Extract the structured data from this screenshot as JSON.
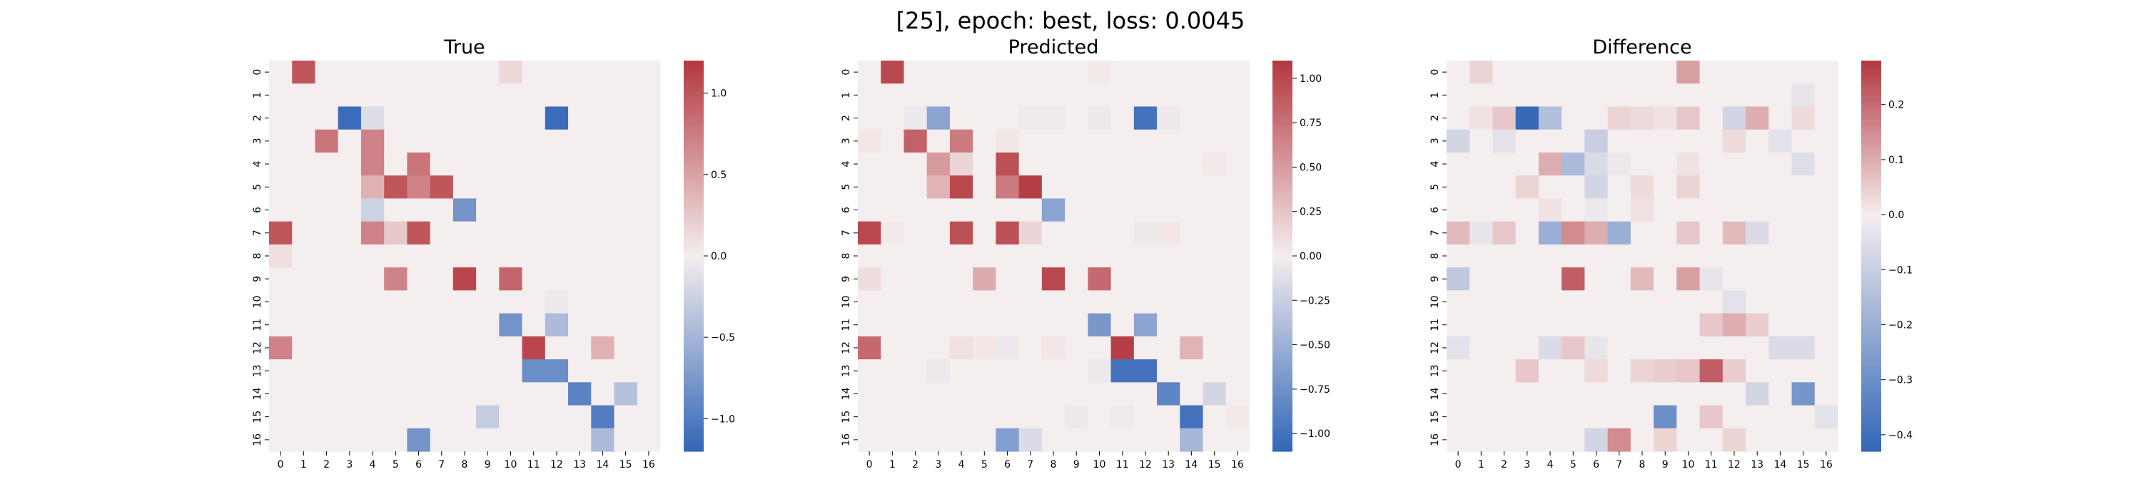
{
  "figure": {
    "suptitle": "[25], epoch: best, loss: 0.0045",
    "colormap": {
      "neg": "#3266b7",
      "mid": "#f5eeee",
      "pos": "#b3373f"
    }
  },
  "chart_data": [
    {
      "type": "heatmap",
      "title": "True",
      "x_ticks": [
        "0",
        "1",
        "2",
        "3",
        "4",
        "5",
        "6",
        "7",
        "8",
        "9",
        "10",
        "11",
        "12",
        "13",
        "14",
        "15",
        "16"
      ],
      "y_ticks": [
        "0",
        "1",
        "2",
        "3",
        "4",
        "5",
        "6",
        "7",
        "8",
        "9",
        "10",
        "11",
        "12",
        "13",
        "14",
        "15",
        "16"
      ],
      "vmin": -1.2,
      "vmax": 1.2,
      "colorbar_ticks": [
        -1.0,
        -0.5,
        0.0,
        0.5,
        1.0
      ],
      "colorbar_labels": [
        "−1.0",
        "−0.5",
        "0.0",
        "0.5",
        "1.0"
      ],
      "z": [
        [
          0,
          1.0,
          0,
          0,
          0,
          0,
          0,
          0,
          0,
          0,
          0.15,
          0,
          0,
          0,
          0,
          0,
          0
        ],
        [
          0,
          0,
          0,
          0,
          0,
          0,
          0,
          0,
          0,
          0,
          0,
          0,
          0,
          0,
          0,
          0,
          0
        ],
        [
          0,
          0,
          0,
          -1.15,
          -0.15,
          0,
          0,
          0,
          0,
          0,
          0,
          0,
          -1.15,
          0,
          0,
          0,
          0
        ],
        [
          0,
          0,
          0.8,
          0,
          0.7,
          0,
          0,
          0,
          0,
          0,
          0,
          0,
          0,
          0,
          0,
          0,
          0
        ],
        [
          0,
          0,
          0,
          0,
          0.7,
          0,
          0.8,
          0,
          0,
          0,
          0,
          0,
          0,
          0,
          0,
          0,
          0
        ],
        [
          0,
          0,
          0,
          0,
          0.4,
          1.0,
          0.7,
          1.0,
          0,
          0,
          0,
          0,
          0,
          0,
          0,
          0,
          0
        ],
        [
          0,
          0,
          0,
          0,
          -0.25,
          0,
          0,
          0,
          -0.8,
          0,
          0,
          0,
          0,
          0,
          0,
          0,
          0
        ],
        [
          1.0,
          0,
          0,
          0,
          0.7,
          0.25,
          1.0,
          0,
          0,
          0,
          0,
          0,
          0,
          0,
          0,
          0,
          0
        ],
        [
          0.1,
          0,
          0,
          0,
          0,
          0,
          0,
          0,
          0,
          0,
          0,
          0,
          0,
          0,
          0,
          0,
          0
        ],
        [
          0,
          0,
          0,
          0,
          0,
          0.7,
          0,
          0,
          1.1,
          0,
          0.9,
          0,
          0,
          0,
          0,
          0,
          0
        ],
        [
          0,
          0,
          0,
          0,
          0,
          0,
          0,
          0,
          0,
          0,
          0,
          0,
          -0.05,
          0,
          0,
          0,
          0
        ],
        [
          0,
          0,
          0,
          0,
          0,
          0,
          0,
          0,
          0,
          0,
          -0.8,
          0,
          -0.45,
          0,
          0,
          0,
          0
        ],
        [
          0.7,
          0,
          0,
          0,
          0,
          0,
          0,
          0,
          0,
          0,
          0,
          1.1,
          0,
          0,
          0.4,
          0,
          0
        ],
        [
          0,
          0,
          0,
          0,
          0,
          0,
          0,
          0,
          0,
          0,
          0,
          -0.85,
          -0.85,
          0,
          0,
          0,
          0
        ],
        [
          0,
          0,
          0,
          0,
          0,
          0,
          0,
          0,
          0,
          0,
          0,
          0,
          0,
          -0.95,
          0,
          -0.4,
          0
        ],
        [
          0,
          0,
          0,
          0,
          0,
          0,
          0,
          0,
          0,
          -0.3,
          0,
          0,
          0,
          0,
          -1.0,
          0,
          0
        ],
        [
          0,
          0,
          0,
          0,
          0,
          0,
          -0.8,
          0,
          0,
          0,
          0,
          0,
          0,
          0,
          -0.45,
          0,
          0
        ]
      ]
    },
    {
      "type": "heatmap",
      "title": "Predicted",
      "x_ticks": [
        "0",
        "1",
        "2",
        "3",
        "4",
        "5",
        "6",
        "7",
        "8",
        "9",
        "10",
        "11",
        "12",
        "13",
        "14",
        "15",
        "16"
      ],
      "y_ticks": [
        "0",
        "1",
        "2",
        "3",
        "4",
        "5",
        "6",
        "7",
        "8",
        "9",
        "10",
        "11",
        "12",
        "13",
        "14",
        "15",
        "16"
      ],
      "vmin": -1.1,
      "vmax": 1.1,
      "colorbar_ticks": [
        -1.0,
        -0.75,
        -0.5,
        -0.25,
        0.0,
        0.25,
        0.5,
        0.75,
        1.0
      ],
      "colorbar_labels": [
        "−1.00",
        "−0.75",
        "−0.50",
        "−0.25",
        "0.00",
        "0.25",
        "0.50",
        "0.75",
        "1.00"
      ],
      "z": [
        [
          0,
          1.0,
          0,
          0,
          0,
          0,
          0,
          0,
          0,
          0,
          0.03,
          0,
          0,
          0,
          0,
          0,
          0
        ],
        [
          0,
          0,
          0,
          0,
          0,
          0,
          0,
          0,
          0,
          0,
          0,
          0,
          0,
          0,
          0,
          0,
          0
        ],
        [
          0,
          0,
          -0.05,
          -0.6,
          0,
          0,
          0,
          -0.03,
          -0.03,
          0,
          -0.05,
          0,
          -1.0,
          -0.05,
          0,
          0,
          0
        ],
        [
          0.05,
          0,
          0.85,
          0,
          0.7,
          0,
          0.05,
          0,
          0,
          0,
          0,
          0,
          0,
          0,
          0,
          0,
          0
        ],
        [
          0,
          0,
          0,
          0.5,
          0.15,
          0,
          0.95,
          0,
          0,
          0,
          0,
          0,
          0,
          0,
          0,
          0.03,
          0
        ],
        [
          0,
          0,
          0,
          0.35,
          1.0,
          0,
          0.7,
          1.05,
          0,
          0,
          0,
          0,
          0,
          0,
          0,
          0,
          0
        ],
        [
          0,
          0,
          0,
          0,
          0,
          0,
          0,
          0,
          -0.6,
          0,
          0,
          0,
          0,
          0,
          0,
          0,
          0
        ],
        [
          1.0,
          0.03,
          0,
          0,
          0.95,
          0,
          0.95,
          0.15,
          0,
          0,
          0,
          0,
          -0.05,
          0.05,
          0,
          0,
          0
        ],
        [
          0,
          0,
          0,
          0,
          0,
          0,
          0,
          0,
          0,
          0,
          0,
          0,
          0,
          0,
          0,
          0,
          0
        ],
        [
          0.1,
          0,
          0,
          0,
          0,
          0.4,
          0,
          0,
          1.0,
          0,
          0.8,
          0,
          0,
          0,
          0,
          0,
          0
        ],
        [
          0,
          0,
          0,
          0,
          0,
          0,
          0,
          0,
          0,
          0,
          0,
          0,
          0,
          0,
          0,
          0,
          0
        ],
        [
          0,
          0,
          0,
          0,
          0,
          0,
          0,
          0,
          0,
          0,
          -0.7,
          0,
          -0.6,
          0,
          0,
          0,
          0
        ],
        [
          0.8,
          0,
          0,
          0,
          0.08,
          0.05,
          -0.05,
          0,
          0.05,
          0,
          0,
          1.05,
          0,
          0,
          0.35,
          0,
          0
        ],
        [
          0,
          0,
          0,
          -0.05,
          0,
          0,
          0,
          0,
          0,
          0,
          -0.05,
          -1.0,
          -1.0,
          0,
          0,
          0,
          0
        ],
        [
          0,
          0,
          0,
          0,
          0,
          0,
          0,
          0,
          0,
          0,
          0,
          0,
          0,
          -0.85,
          0,
          -0.2,
          0
        ],
        [
          0,
          0,
          0,
          0,
          0,
          0,
          0,
          0,
          0,
          -0.05,
          0,
          -0.03,
          0,
          0,
          -1.0,
          0,
          0.03
        ],
        [
          0,
          0,
          0,
          0,
          0,
          0,
          -0.65,
          -0.15,
          0,
          0,
          0,
          0,
          0,
          0,
          -0.45,
          0,
          0
        ]
      ]
    },
    {
      "type": "heatmap",
      "title": "Difference",
      "x_ticks": [
        "0",
        "1",
        "2",
        "3",
        "4",
        "5",
        "6",
        "7",
        "8",
        "9",
        "10",
        "11",
        "12",
        "13",
        "14",
        "15",
        "16"
      ],
      "y_ticks": [
        "0",
        "1",
        "2",
        "3",
        "4",
        "5",
        "6",
        "7",
        "8",
        "9",
        "10",
        "11",
        "12",
        "13",
        "14",
        "15",
        "16"
      ],
      "vmin": -0.43,
      "vmax": 0.28,
      "colorbar_ticks": [
        -0.4,
        -0.3,
        -0.2,
        -0.1,
        0.0,
        0.1,
        0.2
      ],
      "colorbar_labels": [
        "−0.4",
        "−0.3",
        "−0.2",
        "−0.1",
        "0.0",
        "0.1",
        "0.2"
      ],
      "z": [
        [
          0,
          0.04,
          0,
          0,
          0,
          0,
          0,
          0,
          0,
          0,
          0.12,
          0,
          0,
          0,
          0,
          0,
          0
        ],
        [
          0,
          0,
          0,
          0,
          0,
          0,
          0,
          0,
          0,
          0,
          0,
          0,
          0,
          0,
          0,
          -0.03,
          0
        ],
        [
          0,
          0.02,
          0.06,
          -0.42,
          -0.15,
          0,
          0,
          0.04,
          0.03,
          0.02,
          0.06,
          0,
          -0.08,
          0.1,
          0,
          0.03,
          0
        ],
        [
          -0.08,
          0,
          -0.04,
          0,
          0,
          0,
          -0.1,
          0,
          0,
          0,
          0,
          0,
          0.03,
          0,
          -0.04,
          0,
          0
        ],
        [
          0,
          0,
          0,
          0,
          0.1,
          -0.16,
          -0.06,
          -0.02,
          0,
          0,
          0.02,
          0,
          0,
          0,
          0,
          -0.05,
          0
        ],
        [
          0,
          0,
          0,
          0.04,
          0,
          0,
          -0.08,
          0,
          0.03,
          0,
          0.04,
          0,
          0,
          0,
          0,
          0,
          0
        ],
        [
          0,
          0,
          0,
          0,
          0.02,
          0,
          -0.02,
          0,
          0.02,
          0,
          0,
          0,
          0,
          0,
          0,
          0,
          0
        ],
        [
          0.08,
          -0.03,
          0.06,
          0,
          -0.2,
          0.15,
          0.1,
          -0.2,
          0,
          0,
          0.06,
          0,
          0.08,
          -0.06,
          0,
          0,
          0
        ],
        [
          0,
          0,
          0,
          0,
          0,
          0,
          0,
          0,
          0,
          0,
          0,
          0,
          0,
          0,
          0,
          0,
          0
        ],
        [
          -0.12,
          0,
          0,
          0,
          0,
          0.22,
          0,
          0,
          0.08,
          0,
          0.12,
          -0.03,
          0,
          0,
          0,
          0,
          0
        ],
        [
          0,
          0,
          0,
          0,
          0,
          0,
          0,
          0,
          0,
          0,
          0,
          0,
          -0.04,
          0,
          0,
          0,
          0
        ],
        [
          0,
          0,
          0,
          0,
          0,
          0,
          0,
          0,
          0,
          0,
          0,
          0.06,
          0.1,
          0.05,
          0,
          0,
          0
        ],
        [
          -0.04,
          0,
          0,
          0,
          -0.06,
          0.06,
          -0.03,
          0,
          0,
          0,
          0,
          0,
          0,
          0,
          -0.06,
          -0.06,
          0
        ],
        [
          0,
          0,
          0,
          0.06,
          0,
          0,
          0.03,
          0,
          0.04,
          0.05,
          0.06,
          0.22,
          0.05,
          0,
          0,
          0,
          0
        ],
        [
          0,
          0,
          0,
          0,
          0,
          0,
          0,
          0,
          0,
          0,
          0,
          0,
          0,
          -0.08,
          0,
          -0.28,
          0
        ],
        [
          0,
          0,
          0,
          0,
          0,
          0,
          0,
          0,
          0,
          -0.3,
          0,
          0.06,
          0,
          0,
          0,
          0,
          -0.04
        ],
        [
          0,
          0,
          0,
          0,
          0,
          0,
          -0.08,
          0.15,
          0,
          0.04,
          0,
          0,
          0.04,
          0,
          0,
          0,
          0
        ]
      ]
    }
  ]
}
